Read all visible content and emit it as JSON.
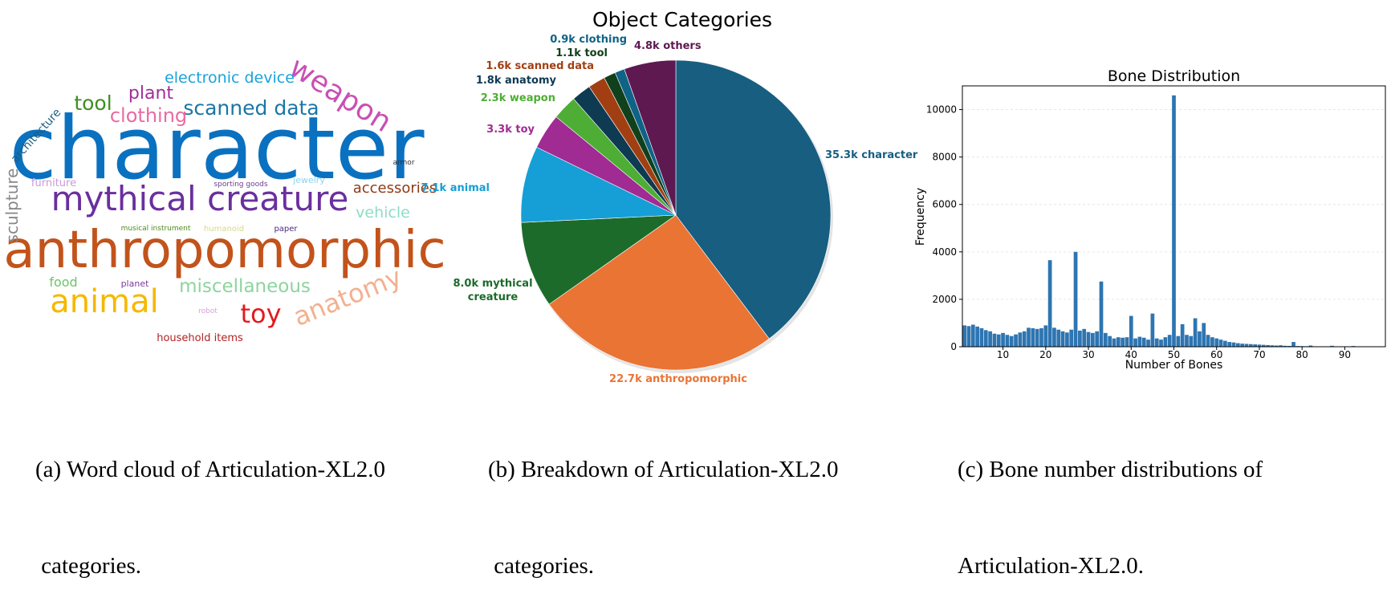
{
  "captions": {
    "a": [
      "(a) Word cloud of Articulation-XL2.0",
      " categories."
    ],
    "b": [
      "(b) Breakdown of Articulation-XL2.0",
      " categories."
    ],
    "c": [
      "(c) Bone number distributions of",
      "Articulation-XL2.0."
    ]
  },
  "wordcloud": {
    "words": [
      {
        "text": "character",
        "color": "#0a71c0"
      },
      {
        "text": "anthropomorphic",
        "color": "#c2531b"
      },
      {
        "text": "mythical creature",
        "color": "#6a2f9e"
      },
      {
        "text": "animal",
        "color": "#f5b800"
      },
      {
        "text": "weapon",
        "color": "#c850b4"
      },
      {
        "text": "scanned data",
        "color": "#1a76a6"
      },
      {
        "text": "electronic device",
        "color": "#1aa3dc"
      },
      {
        "text": "clothing",
        "color": "#ea6aa2"
      },
      {
        "text": "plant",
        "color": "#a02e9a"
      },
      {
        "text": "tool",
        "color": "#3f8d22"
      },
      {
        "text": "architecture",
        "color": "#1a5e7e"
      },
      {
        "text": "sculpture",
        "color": "#888888"
      },
      {
        "text": "furniture",
        "color": "#c89ad6"
      },
      {
        "text": "accessories",
        "color": "#8e3a16"
      },
      {
        "text": "vehicle",
        "color": "#8edcc6"
      },
      {
        "text": "armor",
        "color": "#333333"
      },
      {
        "text": "jewelry",
        "color": "#8fd0f0"
      },
      {
        "text": "sporting goods",
        "color": "#6a3d8e"
      },
      {
        "text": "musical instrument",
        "color": "#4e8a1c"
      },
      {
        "text": "humanoid",
        "color": "#d8d88a"
      },
      {
        "text": "paper",
        "color": "#4a2b7e"
      },
      {
        "text": "miscellaneous",
        "color": "#8ed49e"
      },
      {
        "text": "anatomy",
        "color": "#f2b190"
      },
      {
        "text": "food",
        "color": "#6ec36a"
      },
      {
        "text": "planet",
        "color": "#7a3a9e"
      },
      {
        "text": "robot",
        "color": "#d8a0d8"
      },
      {
        "text": "toy",
        "color": "#e31a1c"
      },
      {
        "text": "household items",
        "color": "#b22222"
      }
    ]
  },
  "chart_data": [
    {
      "type": "pie",
      "title": "Object Categories",
      "slices": [
        {
          "label": "35.3k character",
          "value": 35.3,
          "color": "#175e81"
        },
        {
          "label": "22.7k anthropomorphic",
          "value": 22.7,
          "color": "#e97434"
        },
        {
          "label": "8.0k mythical creature",
          "value": 8.0,
          "color": "#1c6b2a",
          "label_lines": [
            "8.0k mythical",
            "creature"
          ]
        },
        {
          "label": "7.1k animal",
          "value": 7.1,
          "color": "#159fd6"
        },
        {
          "label": "3.3k toy",
          "value": 3.3,
          "color": "#a02b93"
        },
        {
          "label": "2.3k weapon",
          "value": 2.3,
          "color": "#4ead35"
        },
        {
          "label": "1.8k anatomy",
          "value": 1.8,
          "color": "#0e3a52"
        },
        {
          "label": "1.6k scanned data",
          "value": 1.6,
          "color": "#a13f13"
        },
        {
          "label": "1.1k tool",
          "value": 1.1,
          "color": "#11401c"
        },
        {
          "label": "0.9k clothing",
          "value": 0.9,
          "color": "#0f6387"
        },
        {
          "label": "4.8k others",
          "value": 4.8,
          "color": "#5e1951"
        }
      ]
    },
    {
      "type": "bar",
      "title": "Bone Distribution",
      "xlabel": "Number of Bones",
      "ylabel": "Frequency",
      "xlim": [
        1,
        99
      ],
      "ylim": [
        0,
        11000
      ],
      "xticks": [
        10,
        20,
        30,
        40,
        50,
        60,
        70,
        80,
        90
      ],
      "yticks": [
        0,
        2000,
        4000,
        6000,
        8000,
        10000
      ],
      "grid": "y",
      "color": "#2e75b1",
      "x": [
        1,
        2,
        3,
        4,
        5,
        6,
        7,
        8,
        9,
        10,
        11,
        12,
        13,
        14,
        15,
        16,
        17,
        18,
        19,
        20,
        21,
        22,
        23,
        24,
        25,
        26,
        27,
        28,
        29,
        30,
        31,
        32,
        33,
        34,
        35,
        36,
        37,
        38,
        39,
        40,
        41,
        42,
        43,
        44,
        45,
        46,
        47,
        48,
        49,
        50,
        51,
        52,
        53,
        54,
        55,
        56,
        57,
        58,
        59,
        60,
        61,
        62,
        63,
        64,
        65,
        66,
        67,
        68,
        69,
        70,
        71,
        72,
        73,
        74,
        75,
        76,
        77,
        78,
        79,
        80,
        81,
        82,
        83,
        84,
        85,
        86,
        87,
        88,
        89,
        90,
        91,
        92,
        93,
        94,
        95,
        96,
        97,
        98,
        99
      ],
      "values": [
        900,
        870,
        930,
        850,
        780,
        700,
        650,
        550,
        520,
        580,
        500,
        450,
        520,
        600,
        650,
        800,
        780,
        750,
        780,
        900,
        3650,
        800,
        720,
        650,
        600,
        720,
        4000,
        680,
        750,
        620,
        580,
        650,
        2750,
        580,
        450,
        350,
        400,
        380,
        400,
        1300,
        350,
        420,
        380,
        300,
        1400,
        350,
        300,
        400,
        500,
        10600,
        450,
        950,
        500,
        450,
        1200,
        650,
        1000,
        500,
        400,
        350,
        300,
        250,
        200,
        180,
        150,
        130,
        120,
        110,
        100,
        90,
        80,
        70,
        60,
        50,
        60,
        40,
        35,
        200,
        30,
        25,
        20,
        50,
        18,
        15,
        12,
        10,
        40,
        8,
        6,
        5,
        4,
        30,
        3,
        2,
        2,
        1,
        1,
        1,
        0
      ]
    }
  ]
}
